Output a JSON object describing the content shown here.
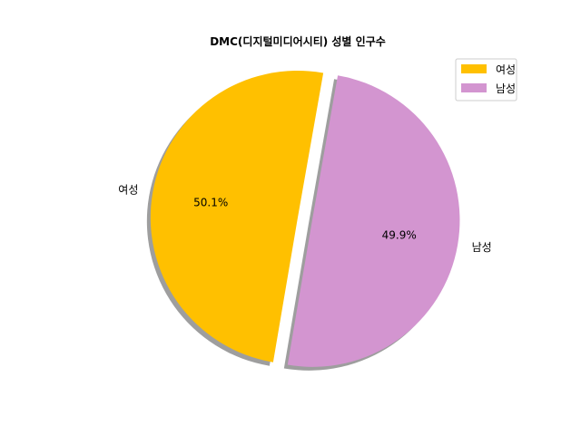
{
  "chart_data": {
    "type": "pie",
    "title": "DMC(디지털미디어시티) 성별 인구수",
    "categories": [
      "여성",
      "남성"
    ],
    "values": [
      50.1,
      49.9
    ],
    "percent_labels": [
      "50.1%",
      "49.9%"
    ],
    "colors": [
      "#ffc000",
      "#d395d0"
    ],
    "explode": [
      0,
      0.1
    ],
    "shadow": true,
    "start_angle": 80,
    "legend": {
      "placement": "top-right",
      "entries": [
        "여성",
        "남성"
      ]
    }
  }
}
